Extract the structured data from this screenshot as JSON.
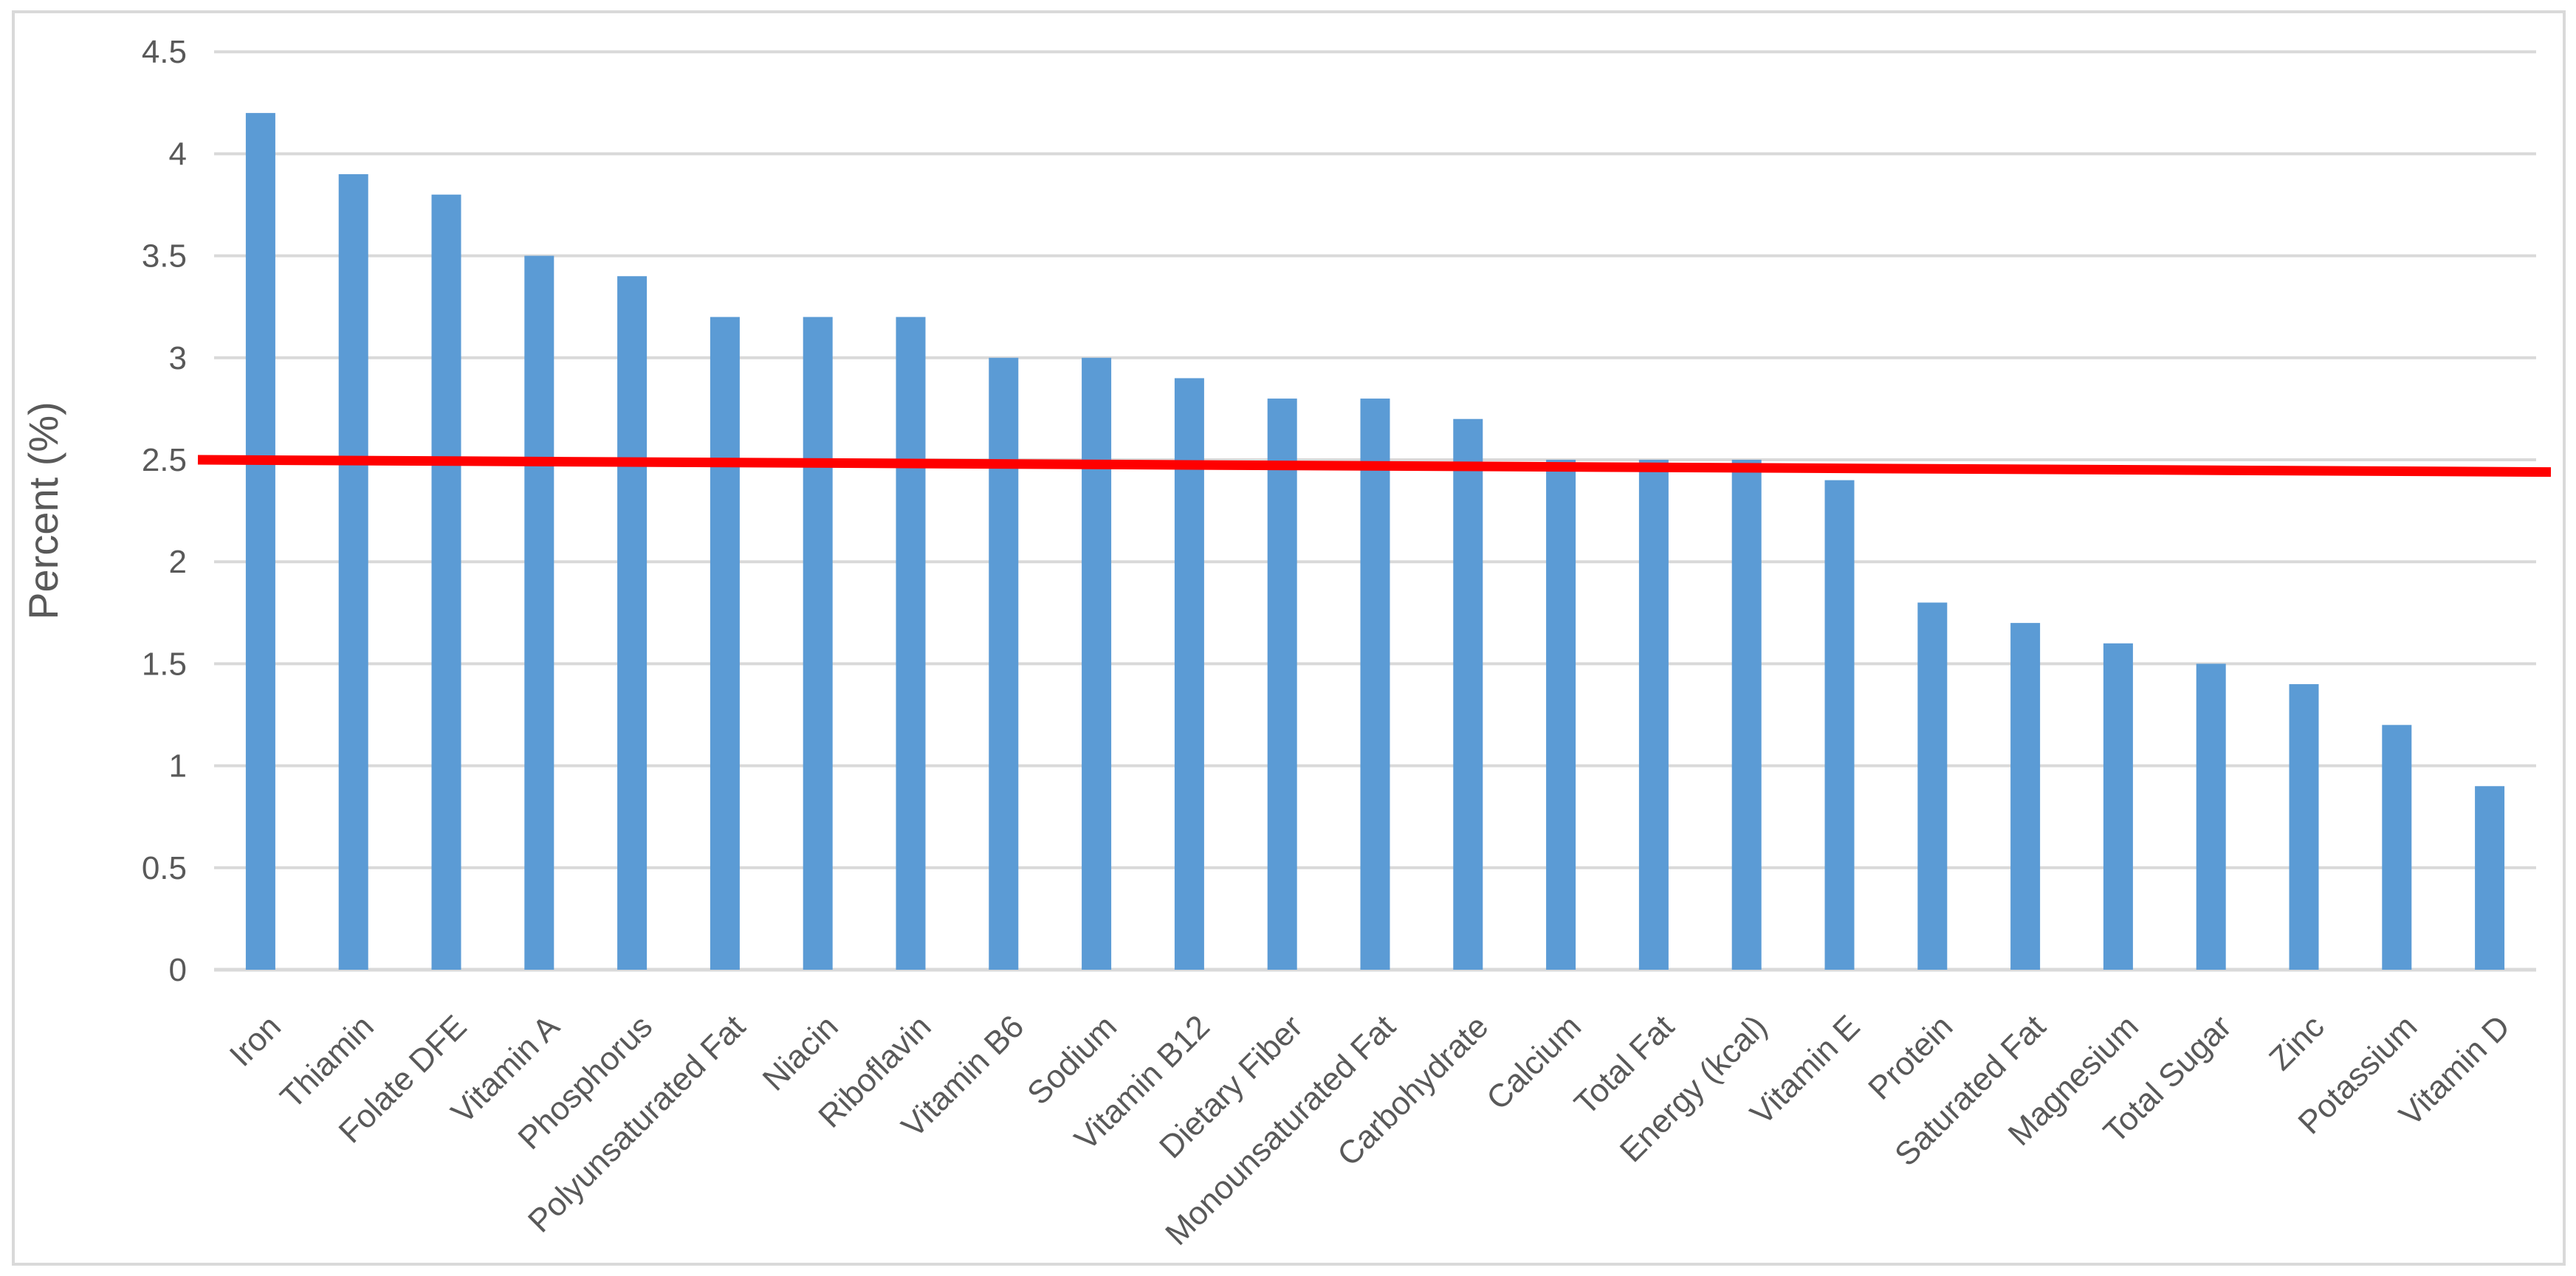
{
  "chart_data": {
    "type": "bar",
    "title": "",
    "xlabel": "",
    "ylabel": "Percent (%)",
    "categories": [
      "Iron",
      "Thiamin",
      "Folate DFE",
      "Vitamin A",
      "Phosphorus",
      "Polyunsaturated Fat",
      "Niacin",
      "Riboflavin",
      "Vitamin B6",
      "Sodium",
      "Vitamin B12",
      "Dietary Fiber",
      "Monounsaturated Fat",
      "Carbohydrate",
      "Calcium",
      "Total Fat",
      "Energy (kcal)",
      "Vitamin E",
      "Protein",
      "Saturated Fat",
      "Magnesium",
      "Total Sugar",
      "Zinc",
      "Potassium",
      "Vitamin D"
    ],
    "values": [
      4.2,
      3.9,
      3.8,
      3.5,
      3.4,
      3.2,
      3.2,
      3.2,
      3.0,
      3.0,
      2.9,
      2.8,
      2.8,
      2.7,
      2.5,
      2.5,
      2.5,
      2.4,
      1.8,
      1.7,
      1.6,
      1.5,
      1.4,
      1.2,
      0.9
    ],
    "ylim": [
      0,
      4.5
    ],
    "ytick_step": 0.5,
    "yticks": [
      "0",
      "0.5",
      "1",
      "1.5",
      "2",
      "2.5",
      "3",
      "3.5",
      "4",
      "4.5"
    ],
    "grid": true,
    "legend": "none",
    "reference_line": {
      "start_value": 2.5,
      "end_value": 2.44,
      "color": "#FF0000"
    },
    "colors": {
      "bar": "#5B9BD5",
      "gridline": "#D9D9D9",
      "axis_text": "#595959",
      "frame_border": "#D9D9D9",
      "background": "#FFFFFF"
    }
  }
}
